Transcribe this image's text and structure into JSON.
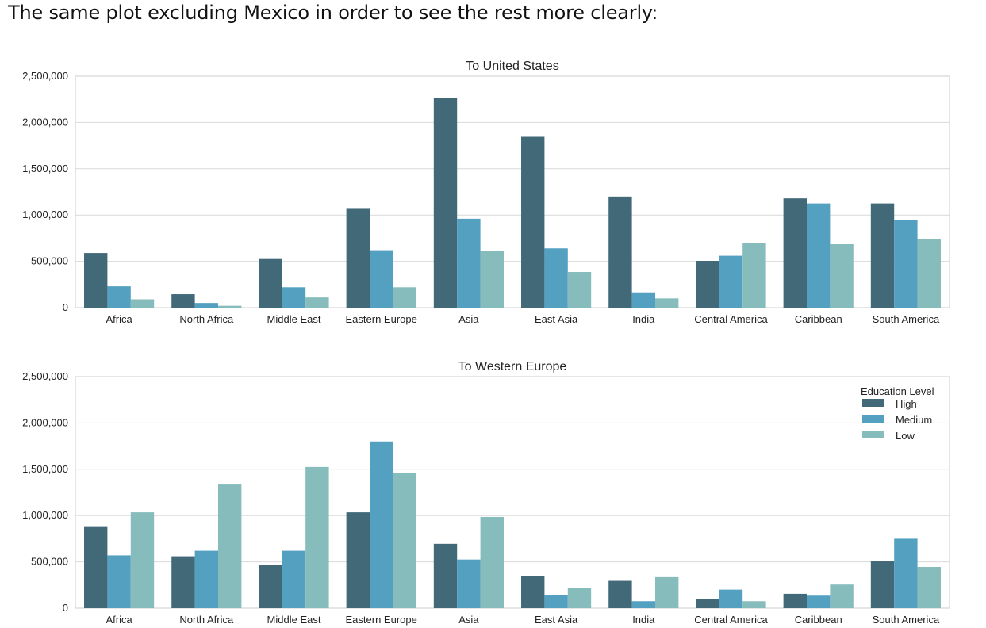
{
  "intro_text": "The same plot excluding Mexico in order to see the rest more clearly:",
  "colors": {
    "High": "#416977",
    "Medium": "#53a0c1",
    "Low": "#86bcbb",
    "grid": "#d9d9d9",
    "frame": "#cccccc"
  },
  "chart_data": [
    {
      "type": "bar",
      "title": "To United States",
      "categories": [
        "Africa",
        "North Africa",
        "Middle East",
        "Eastern Europe",
        "Asia",
        "East Asia",
        "India",
        "Central America",
        "Caribbean",
        "South America"
      ],
      "series": [
        {
          "name": "High",
          "values": [
            590000,
            145000,
            525000,
            1075000,
            2265000,
            1845000,
            1200000,
            505000,
            1180000,
            1125000
          ]
        },
        {
          "name": "Medium",
          "values": [
            230000,
            50000,
            220000,
            620000,
            960000,
            640000,
            165000,
            560000,
            1125000,
            950000
          ]
        },
        {
          "name": "Low",
          "values": [
            90000,
            20000,
            110000,
            220000,
            610000,
            385000,
            100000,
            700000,
            685000,
            740000
          ]
        }
      ],
      "ylim": [
        0,
        2500000
      ],
      "yticks": [
        0,
        500000,
        1000000,
        1500000,
        2000000,
        2500000
      ],
      "ytick_labels": [
        "0",
        "500,000",
        "1,000,000",
        "1,500,000",
        "2,000,000",
        "2,500,000"
      ],
      "grid": true,
      "legend": null
    },
    {
      "type": "bar",
      "title": "To Western Europe",
      "categories": [
        "Africa",
        "North Africa",
        "Middle East",
        "Eastern Europe",
        "Asia",
        "East Asia",
        "India",
        "Central America",
        "Caribbean",
        "South America"
      ],
      "series": [
        {
          "name": "High",
          "values": [
            885000,
            560000,
            465000,
            1035000,
            695000,
            345000,
            295000,
            100000,
            155000,
            505000
          ]
        },
        {
          "name": "Medium",
          "values": [
            570000,
            620000,
            620000,
            1800000,
            525000,
            145000,
            75000,
            200000,
            135000,
            750000
          ]
        },
        {
          "name": "Low",
          "values": [
            1035000,
            1335000,
            1525000,
            1460000,
            985000,
            220000,
            335000,
            75000,
            255000,
            445000
          ]
        }
      ],
      "ylim": [
        0,
        2500000
      ],
      "yticks": [
        0,
        500000,
        1000000,
        1500000,
        2000000,
        2500000
      ],
      "ytick_labels": [
        "0",
        "500,000",
        "1,000,000",
        "1,500,000",
        "2,000,000",
        "2,500,000"
      ],
      "grid": true,
      "legend": {
        "title": "Education Level",
        "placement": "top-right",
        "entries": [
          "High",
          "Medium",
          "Low"
        ]
      }
    }
  ]
}
